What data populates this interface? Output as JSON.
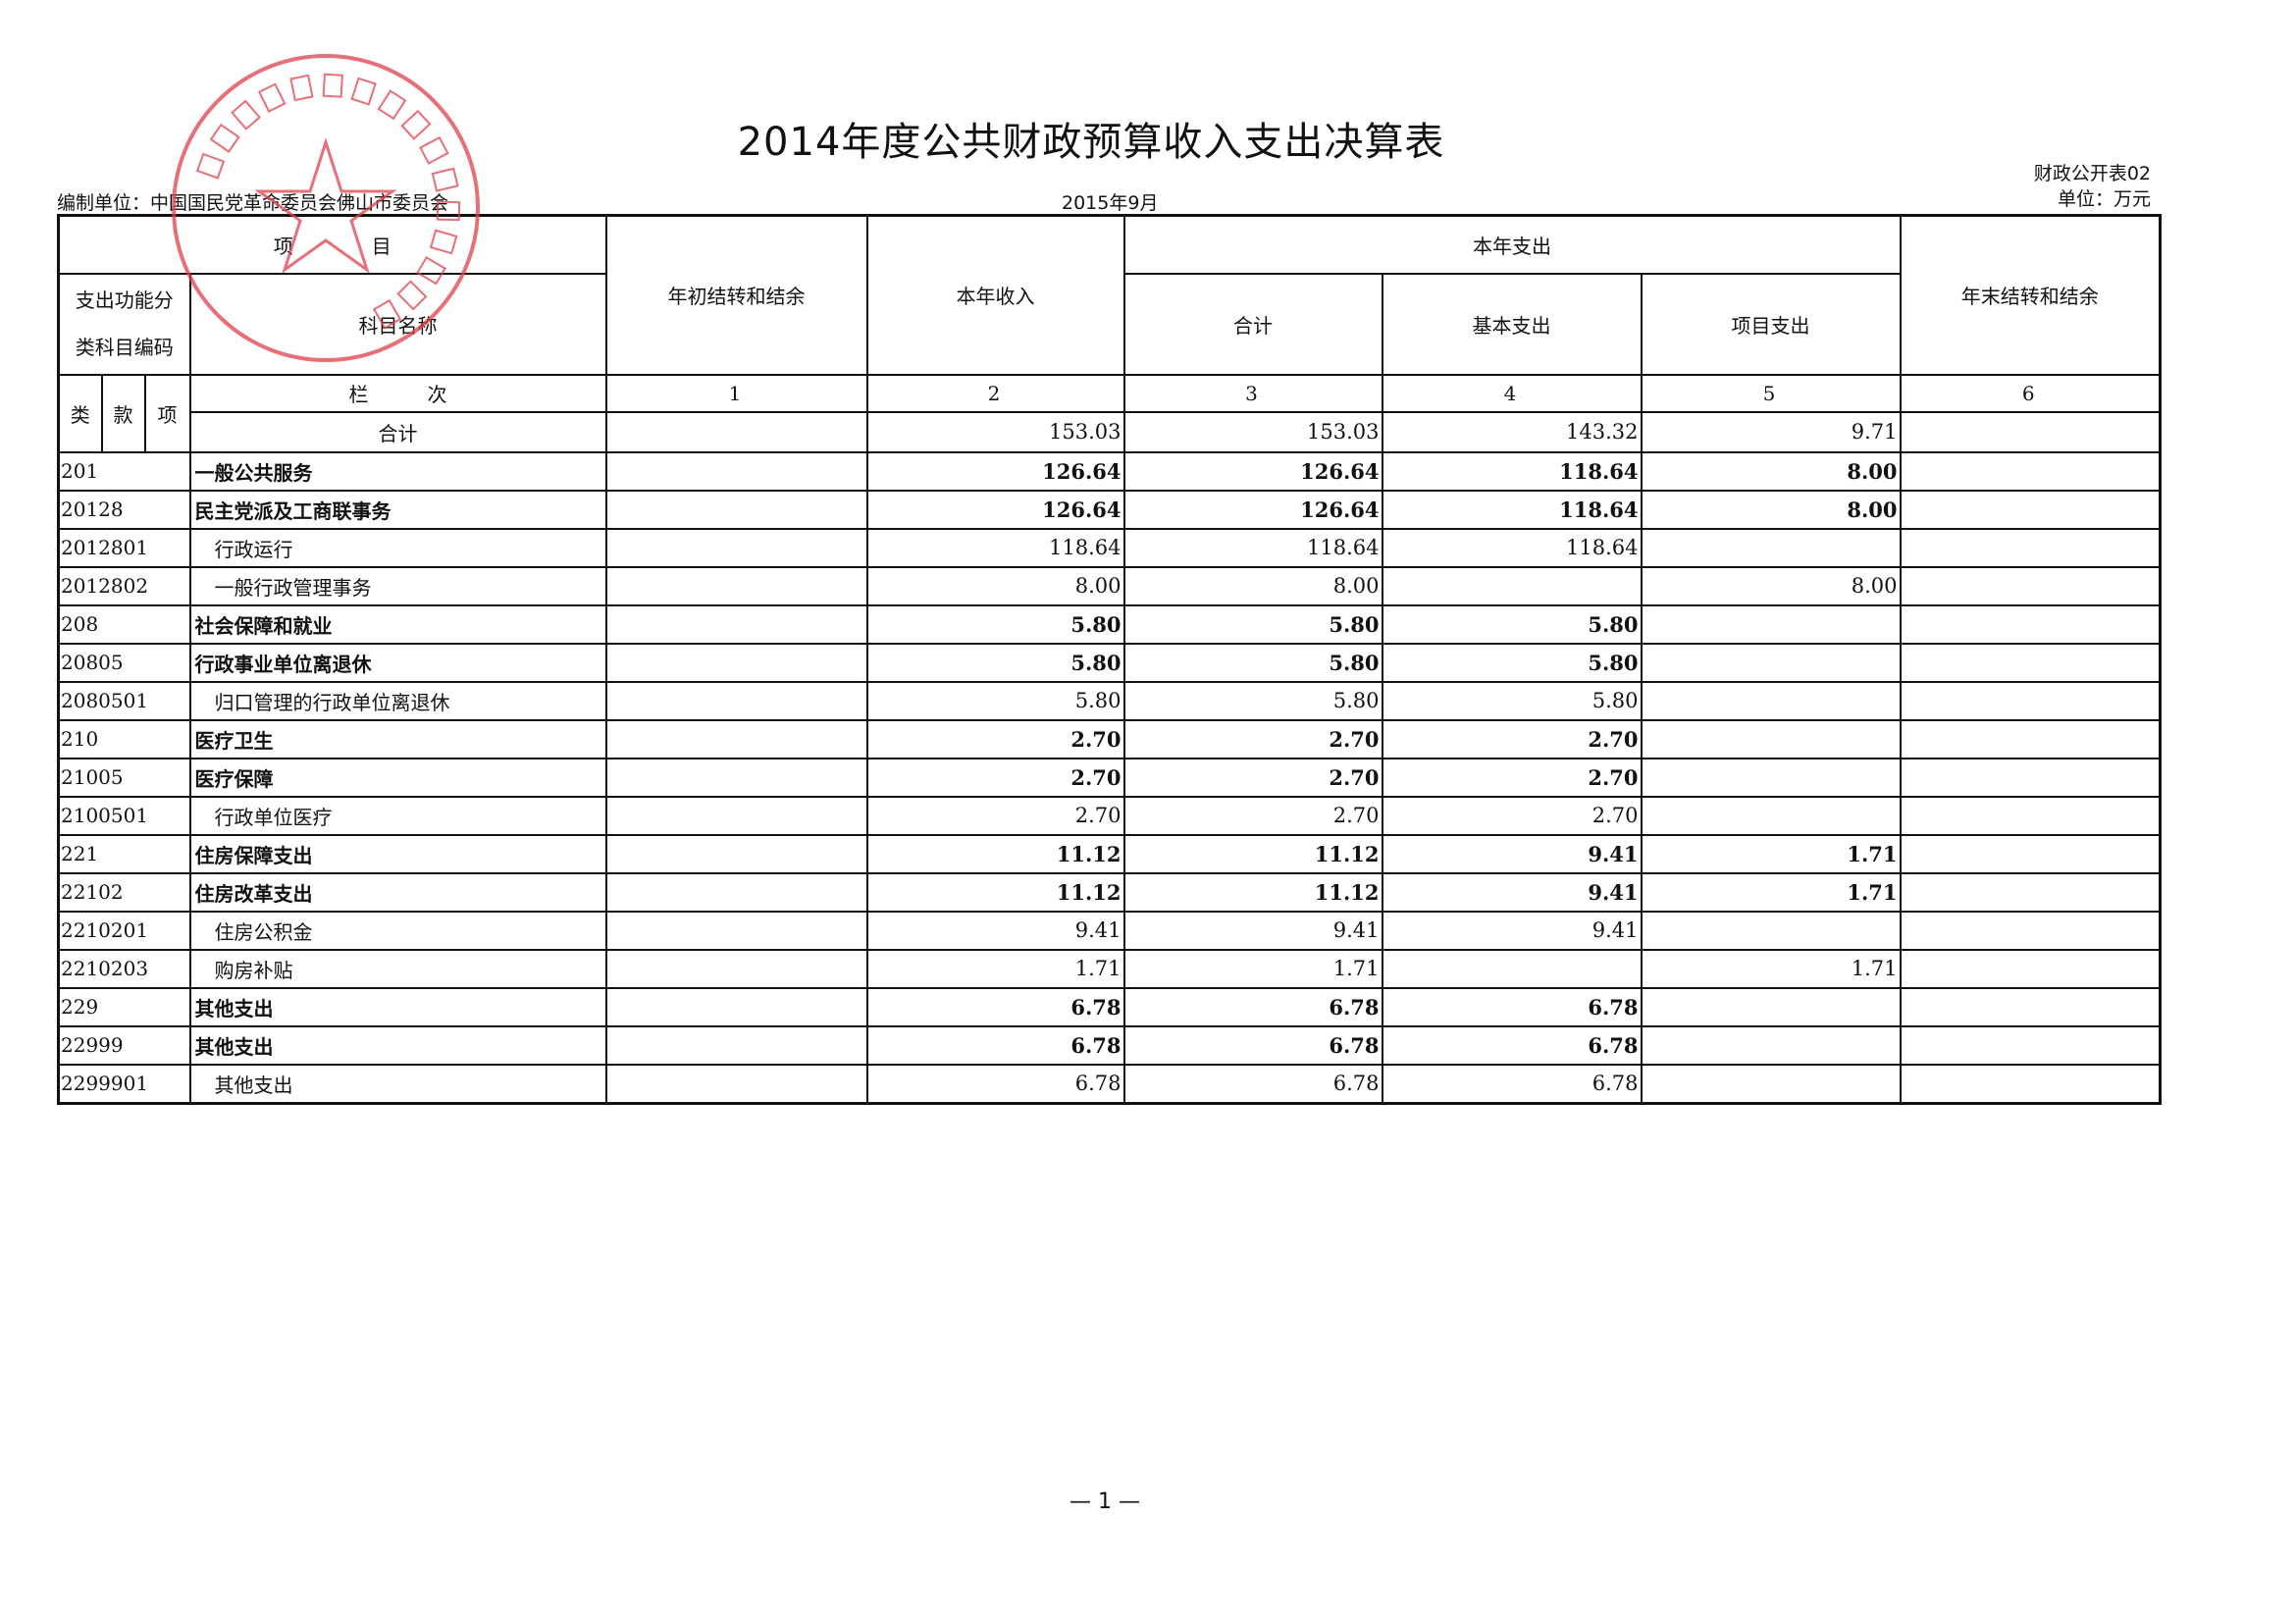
{
  "title": "2014年度公共财政预算收入支出决算表",
  "unit_label": "编制单位：中国国民党革命委员会佛山市委员会",
  "date": "2015年9月",
  "form_no": "财政公开表02",
  "currency": "单位：万元",
  "stamp_text": "中国国民党革命委员会佛山市委员会",
  "stamp_color": "#e0404a",
  "header": {
    "item": "项　　　　目",
    "begin_balance": "年初结转和结余",
    "income": "本年收入",
    "expense": "本年支出",
    "end_balance": "年末结转和结余",
    "code_line1": "支出功能分",
    "code_line2": "类科目编码",
    "name": "科目名称",
    "exp_total": "合计",
    "exp_basic": "基本支出",
    "exp_project": "项目支出",
    "lei": "类",
    "kuan": "款",
    "xiang": "项",
    "lanci": "栏　　　次",
    "col_nums": [
      "1",
      "2",
      "3",
      "4",
      "5",
      "6"
    ]
  },
  "total": {
    "name": "合计",
    "values": [
      "",
      "153.03",
      "153.03",
      "143.32",
      "9.71",
      ""
    ]
  },
  "rows": [
    {
      "code": "201",
      "name": "一般公共服务",
      "level": 1,
      "values": [
        "",
        "126.64",
        "126.64",
        "118.64",
        "8.00",
        ""
      ]
    },
    {
      "code": "20128",
      "name": "民主党派及工商联事务",
      "level": 2,
      "values": [
        "",
        "126.64",
        "126.64",
        "118.64",
        "8.00",
        ""
      ]
    },
    {
      "code": "2012801",
      "name": "行政运行",
      "level": 3,
      "values": [
        "",
        "118.64",
        "118.64",
        "118.64",
        "",
        ""
      ]
    },
    {
      "code": "2012802",
      "name": "一般行政管理事务",
      "level": 3,
      "values": [
        "",
        "8.00",
        "8.00",
        "",
        "8.00",
        ""
      ]
    },
    {
      "code": "208",
      "name": "社会保障和就业",
      "level": 1,
      "values": [
        "",
        "5.80",
        "5.80",
        "5.80",
        "",
        ""
      ]
    },
    {
      "code": "20805",
      "name": "行政事业单位离退休",
      "level": 2,
      "values": [
        "",
        "5.80",
        "5.80",
        "5.80",
        "",
        ""
      ]
    },
    {
      "code": "2080501",
      "name": "归口管理的行政单位离退休",
      "level": 3,
      "values": [
        "",
        "5.80",
        "5.80",
        "5.80",
        "",
        ""
      ]
    },
    {
      "code": "210",
      "name": "医疗卫生",
      "level": 1,
      "values": [
        "",
        "2.70",
        "2.70",
        "2.70",
        "",
        ""
      ]
    },
    {
      "code": "21005",
      "name": "医疗保障",
      "level": 2,
      "values": [
        "",
        "2.70",
        "2.70",
        "2.70",
        "",
        ""
      ]
    },
    {
      "code": "2100501",
      "name": "行政单位医疗",
      "level": 3,
      "values": [
        "",
        "2.70",
        "2.70",
        "2.70",
        "",
        ""
      ]
    },
    {
      "code": "221",
      "name": "住房保障支出",
      "level": 1,
      "values": [
        "",
        "11.12",
        "11.12",
        "9.41",
        "1.71",
        ""
      ]
    },
    {
      "code": "22102",
      "name": "住房改革支出",
      "level": 2,
      "values": [
        "",
        "11.12",
        "11.12",
        "9.41",
        "1.71",
        ""
      ]
    },
    {
      "code": "2210201",
      "name": "住房公积金",
      "level": 3,
      "values": [
        "",
        "9.41",
        "9.41",
        "9.41",
        "",
        ""
      ]
    },
    {
      "code": "2210203",
      "name": "购房补贴",
      "level": 3,
      "values": [
        "",
        "1.71",
        "1.71",
        "",
        "1.71",
        ""
      ]
    },
    {
      "code": "229",
      "name": "其他支出",
      "level": 1,
      "values": [
        "",
        "6.78",
        "6.78",
        "6.78",
        "",
        ""
      ]
    },
    {
      "code": "22999",
      "name": "其他支出",
      "level": 2,
      "values": [
        "",
        "6.78",
        "6.78",
        "6.78",
        "",
        ""
      ]
    },
    {
      "code": "2299901",
      "name": "其他支出",
      "level": 3,
      "values": [
        "",
        "6.78",
        "6.78",
        "6.78",
        "",
        ""
      ]
    }
  ],
  "page_number": "— 1 —"
}
